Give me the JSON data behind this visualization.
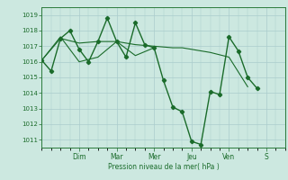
{
  "background_color": "#cce8e0",
  "grid_color": "#aacccc",
  "line_color": "#1a6b2a",
  "xlabel": "Pression niveau de la mer( hPa )",
  "ylim": [
    1010.5,
    1019.5
  ],
  "yticks": [
    1011,
    1012,
    1013,
    1014,
    1015,
    1016,
    1017,
    1018,
    1019
  ],
  "day_labels": [
    "Dim",
    "Mar",
    "Mer",
    "Jeu",
    "Ven",
    "S"
  ],
  "day_positions": [
    2,
    4,
    6,
    8,
    10,
    12
  ],
  "xlim": [
    0,
    13
  ],
  "lines": [
    {
      "x": [
        0.0,
        0.5,
        1.0,
        1.5,
        2.0,
        2.5,
        3.0,
        3.5,
        4.0,
        4.5,
        5.0,
        5.5,
        6.0,
        6.5,
        7.0,
        7.5,
        8.0,
        8.5,
        9.0,
        9.5,
        10.0,
        10.5,
        11.0,
        11.5
      ],
      "y": [
        1016.1,
        1015.4,
        1017.5,
        1018.0,
        1016.8,
        1016.0,
        1017.3,
        1018.8,
        1017.3,
        1016.3,
        1018.5,
        1017.1,
        1016.9,
        1014.8,
        1013.1,
        1012.8,
        1010.9,
        1010.7,
        1014.1,
        1013.9,
        1017.6,
        1016.7,
        1015.0,
        1014.3
      ],
      "marker": "D",
      "markersize": 2.2,
      "linewidth": 1.0
    },
    {
      "x": [
        0.0,
        1.0,
        2.0,
        3.0,
        4.0,
        5.0,
        6.0,
        7.0,
        7.5,
        8.0,
        9.0,
        10.0,
        11.0
      ],
      "y": [
        1016.1,
        1017.5,
        1017.2,
        1017.3,
        1017.3,
        1017.1,
        1017.0,
        1016.9,
        1016.9,
        1016.8,
        1016.6,
        1016.3,
        1014.4
      ],
      "marker": null,
      "linewidth": 0.8
    },
    {
      "x": [
        0.0,
        1.0,
        2.0,
        3.0,
        4.0,
        5.0,
        6.0
      ],
      "y": [
        1016.1,
        1017.6,
        1016.0,
        1016.3,
        1017.3,
        1016.4,
        1016.9
      ],
      "marker": null,
      "linewidth": 0.8
    }
  ]
}
